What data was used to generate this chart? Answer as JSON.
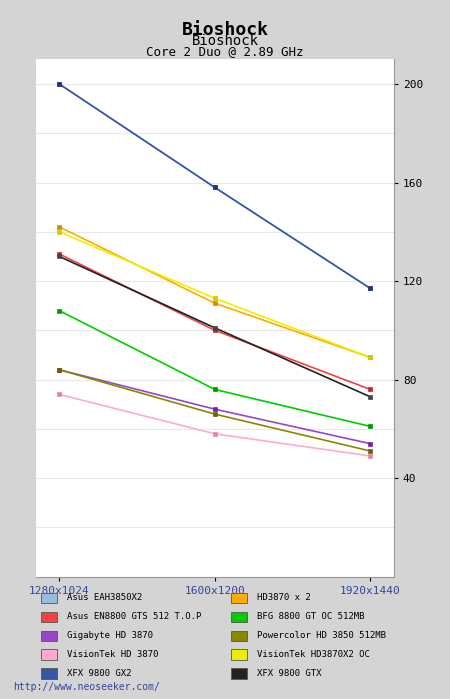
{
  "title": "Bioshock",
  "subtitle": "Bioshock",
  "subtitle2": "Core 2 Duo @ 2.89 GHz",
  "x_labels": [
    "1280x1024",
    "1600x1200",
    "1920x1440"
  ],
  "x_values": [
    0,
    1,
    2
  ],
  "ylim": [
    0,
    210
  ],
  "yticks_major": [
    40,
    80,
    120,
    160,
    200
  ],
  "yticks_minor": [
    20,
    40,
    60,
    80,
    100,
    120,
    140,
    160,
    180,
    200
  ],
  "bg_color": "#d4d4d4",
  "plot_bg_color": "#ffffff",
  "grid_color": "#e0e0e0",
  "title_fontsize": 13,
  "subtitle_fontsize": 10,
  "subtitle2_fontsize": 9,
  "footer_url": "http://www.neoseeker.com/",
  "series": [
    {
      "label": "Asus EAH3850X2",
      "color": "#99bbdd",
      "values": [
        200,
        158,
        117
      ],
      "mcolor": "#6688aa"
    },
    {
      "label": "Asus EN8800 GTS 512 T.O.P",
      "color": "#ee4444",
      "values": [
        131,
        100,
        76
      ],
      "mcolor": "#cc2222"
    },
    {
      "label": "Gigabyte HD 3870",
      "color": "#9944cc",
      "values": [
        84,
        68,
        54
      ],
      "mcolor": "#7722aa"
    },
    {
      "label": "VisionTek HD 3870",
      "color": "#ffaacc",
      "values": [
        74,
        58,
        49
      ],
      "mcolor": "#dd88aa"
    },
    {
      "label": "XFX 9800 GX2",
      "color": "#3355aa",
      "values": [
        200,
        158,
        117
      ],
      "mcolor": "#223388"
    },
    {
      "label": "HD3870 x 2",
      "color": "#ffaa00",
      "values": [
        142,
        111,
        89
      ],
      "mcolor": "#dd8800"
    },
    {
      "label": "BFG 8800 GT OC 512MB",
      "color": "#00cc00",
      "values": [
        108,
        76,
        61
      ],
      "mcolor": "#009900"
    },
    {
      "label": "Powercolor HD 3850 512MB",
      "color": "#888800",
      "values": [
        84,
        66,
        51
      ],
      "mcolor": "#666600"
    },
    {
      "label": "VisionTek HD3870X2 OC",
      "color": "#eeee00",
      "values": [
        140,
        113,
        89
      ],
      "mcolor": "#cccc00"
    },
    {
      "label": "XFX 9800 GTX",
      "color": "#222222",
      "values": [
        130,
        101,
        73
      ],
      "mcolor": "#444444"
    }
  ],
  "legend_left": [
    {
      "label": "Asus EAH3850X2",
      "color": "#99bbdd"
    },
    {
      "label": "Asus EN8800 GTS 512 T.O.P",
      "color": "#ee4444"
    },
    {
      "label": "Gigabyte HD 3870",
      "color": "#9944cc"
    },
    {
      "label": "VisionTek HD 3870",
      "color": "#ffaacc"
    },
    {
      "label": "XFX 9800 GX2",
      "color": "#3355aa"
    }
  ],
  "legend_right": [
    {
      "label": "HD3870 x 2",
      "color": "#ffaa00"
    },
    {
      "label": "BFG 8800 GT OC 512MB",
      "color": "#00cc00"
    },
    {
      "label": "Powercolor HD 3850 512MB",
      "color": "#888800"
    },
    {
      "label": "VisionTek HD3870X2 OC",
      "color": "#eeee00"
    },
    {
      "label": "XFX 9800 GTX",
      "color": "#222222"
    }
  ]
}
